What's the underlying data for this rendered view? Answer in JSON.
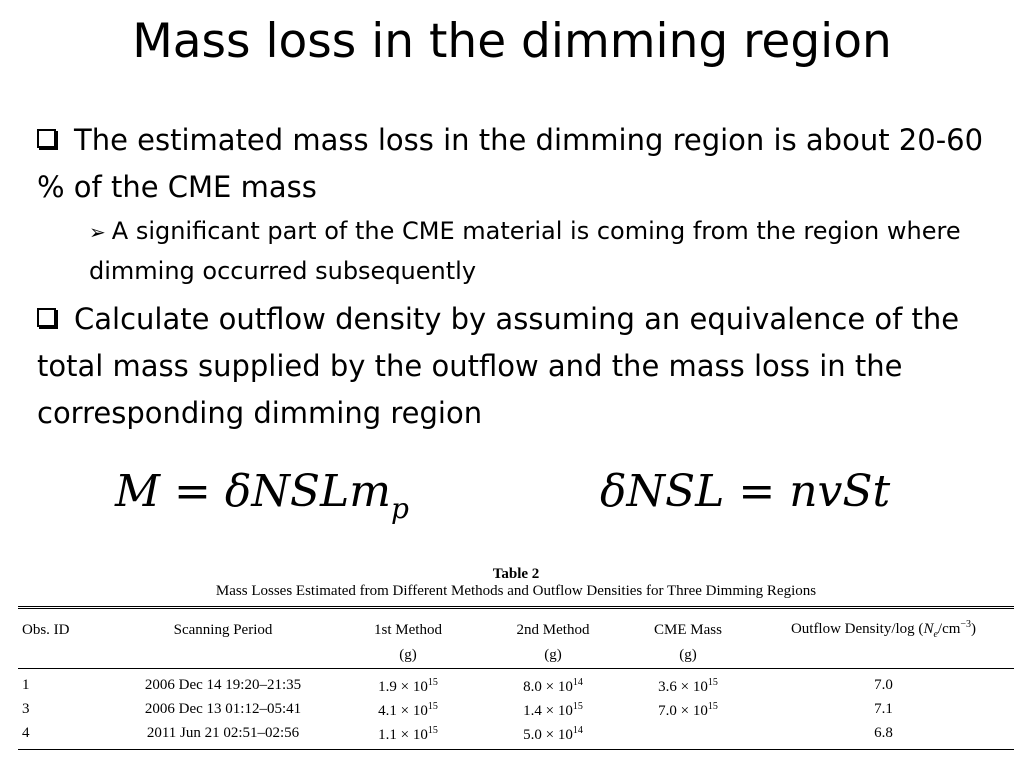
{
  "slide": {
    "title": "Mass loss in the dimming region",
    "bullet1": "The estimated mass loss in the dimming region is about 20-60 % of the CME mass",
    "sub_bullet": "A significant part of the CME material is coming from the region where dimming occurred subsequently",
    "bullet2": "Calculate outflow density by assuming an equivalence of the total mass supplied by the outflow and the mass loss in the corresponding dimming region"
  },
  "equations": {
    "eq1_main": "M = δNSLm",
    "eq1_sub": "p",
    "eq2": "δNSL = nvSt"
  },
  "table": {
    "caption": "Table 2",
    "subtitle": "Mass Losses Estimated from Different Methods and Outflow Densities for Three Dimming Regions",
    "headers": {
      "obs_id": "Obs. ID",
      "period": "Scanning Period",
      "method1": "1st Method",
      "method2": "2nd Method",
      "cme_mass": "CME Mass",
      "density_prefix": "Outflow Density/log (",
      "density_var": "N",
      "density_var_sub": "e",
      "density_unit": "/cm",
      "density_exp": "−3",
      "density_suffix": ")",
      "unit_g": "(g)"
    },
    "rows": [
      {
        "id": "1",
        "period": "2006 Dec 14 19:20–21:35",
        "m1": "1.9 × 10",
        "m1_exp": "15",
        "m2": "8.0 × 10",
        "m2_exp": "14",
        "cme": "3.6 × 10",
        "cme_exp": "15",
        "density": "7.0"
      },
      {
        "id": "3",
        "period": "2006 Dec 13 01:12–05:41",
        "m1": "4.1 × 10",
        "m1_exp": "15",
        "m2": "1.4 × 10",
        "m2_exp": "15",
        "cme": "7.0 × 10",
        "cme_exp": "15",
        "density": "7.1"
      },
      {
        "id": "4",
        "period": "2011 Jun 21 02:51–02:56",
        "m1": "1.1 × 10",
        "m1_exp": "15",
        "m2": "5.0 × 10",
        "m2_exp": "14",
        "cme": "",
        "cme_exp": "",
        "density": "6.8"
      }
    ]
  }
}
